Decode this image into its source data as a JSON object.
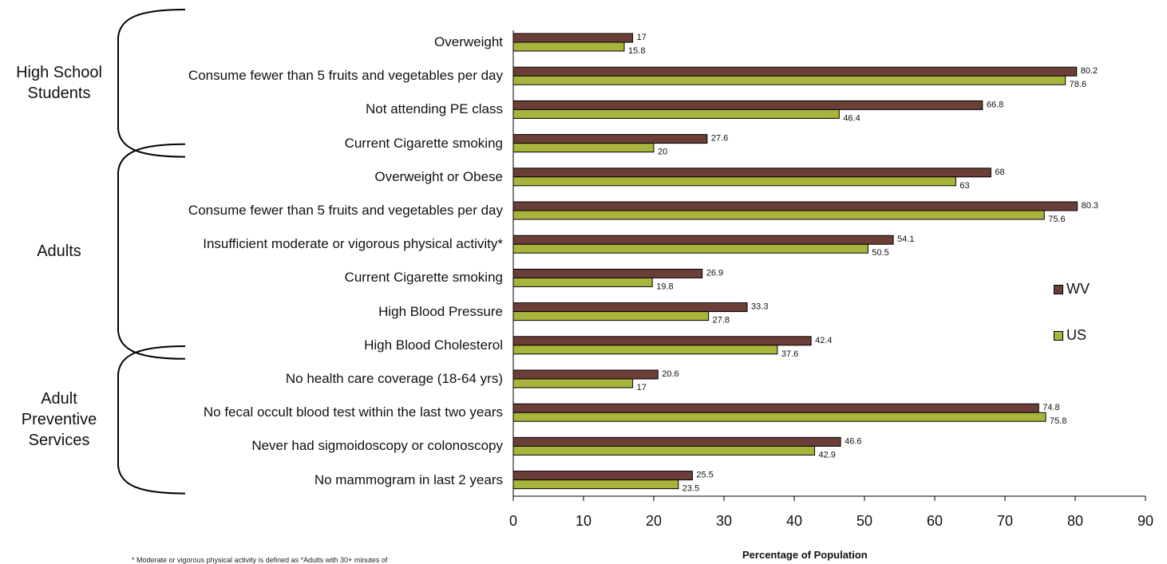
{
  "chart_data": {
    "type": "bar",
    "orientation": "horizontal",
    "xlabel": "Percentage of Population",
    "xlim": [
      0,
      90
    ],
    "xticks": [
      0,
      10,
      20,
      30,
      40,
      50,
      60,
      70,
      80,
      90
    ],
    "grid": false,
    "legend_position": "right",
    "colors": {
      "WV": "#6b3f38",
      "US": "#a8b43c"
    },
    "groups": [
      {
        "name_lines": [
          "High School",
          "Students"
        ],
        "start": 0,
        "end": 3
      },
      {
        "name_lines": [
          "Adults"
        ],
        "start": 4,
        "end": 9
      },
      {
        "name_lines": [
          "Adult",
          "Preventive",
          "Services"
        ],
        "start": 10,
        "end": 13
      }
    ],
    "categories": [
      "Overweight",
      "Consume fewer than 5 fruits and vegetables per day",
      "Not attending PE class",
      "Current Cigarette smoking",
      "Overweight or Obese",
      "Consume fewer than 5 fruits and vegetables per day",
      "Insufficient moderate or vigorous physical activity*",
      "Current Cigarette smoking",
      "High Blood Pressure",
      "High Blood Cholesterol",
      "No health care coverage (18-64 yrs)",
      "No fecal occult blood test within the last two years",
      "Never had sigmoidoscopy or colonoscopy",
      "No mammogram in last 2 years"
    ],
    "series": [
      {
        "name": "WV",
        "values": [
          17,
          80.2,
          66.8,
          27.6,
          68,
          80.3,
          54.1,
          26.9,
          33.3,
          42.4,
          20.6,
          74.8,
          46.6,
          25.5
        ]
      },
      {
        "name": "US",
        "values": [
          15.8,
          78.6,
          46.4,
          20,
          63,
          75.6,
          50.5,
          19.8,
          27.8,
          37.6,
          17,
          75.8,
          42.9,
          23.5
        ]
      }
    ],
    "footnote": "* Moderate or vigorous physical activity is defined as *Adults with 30+ minutes of"
  }
}
